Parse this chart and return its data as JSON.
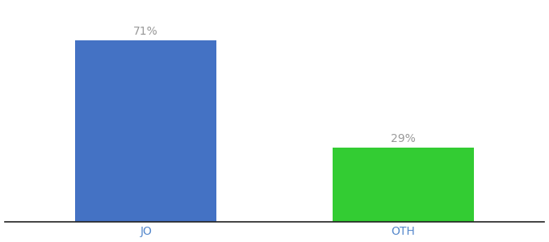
{
  "categories": [
    "JO",
    "OTH"
  ],
  "values": [
    71,
    29
  ],
  "bar_colors": [
    "#4472c4",
    "#33cc33"
  ],
  "bar_labels": [
    "71%",
    "29%"
  ],
  "ylim": [
    0,
    85
  ],
  "background_color": "#ffffff",
  "label_color": "#999999",
  "label_fontsize": 10,
  "tick_fontsize": 10,
  "tick_color": "#5588cc",
  "bar_width": 0.55
}
